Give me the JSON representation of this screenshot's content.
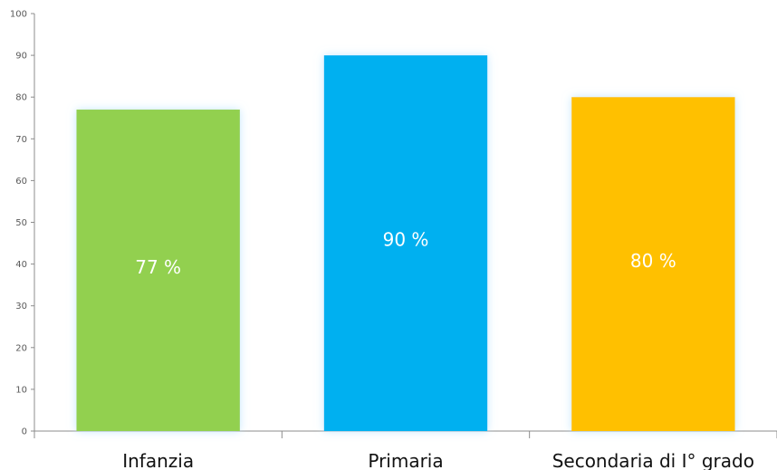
{
  "chart_data": {
    "type": "bar",
    "categories": [
      "Infanzia",
      "Primaria",
      "Secondaria di I° grado"
    ],
    "values": [
      77,
      90,
      80
    ],
    "data_labels": [
      "77 %",
      "90 %",
      "80 %"
    ],
    "colors": [
      "#92d050",
      "#00b0f0",
      "#ffc000"
    ],
    "title": "",
    "xlabel": "",
    "ylabel": "",
    "ylim": [
      0,
      100
    ],
    "yticks": [
      "0",
      "10",
      "20",
      "30",
      "40",
      "50",
      "60",
      "70",
      "80",
      "90",
      "100"
    ],
    "grid": false,
    "legend": "none",
    "axis_color": "#8c8c8c"
  }
}
